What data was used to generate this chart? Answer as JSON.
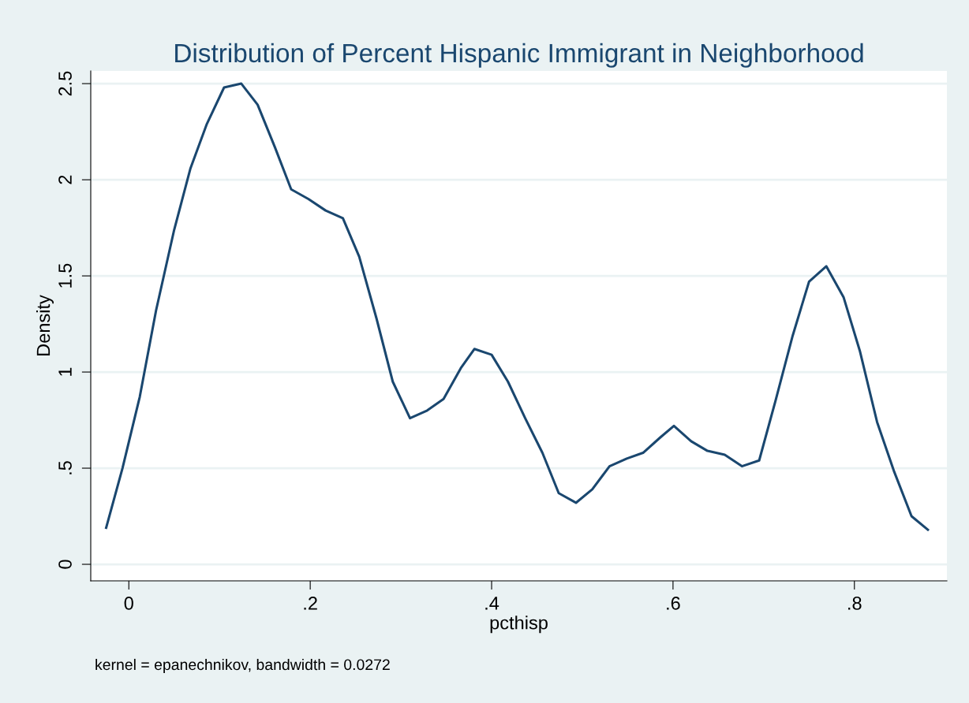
{
  "chart_data": {
    "type": "line",
    "title": "Distribution of Percent Hispanic Immigrant in Neighborhood",
    "xlabel": "pcthisp",
    "ylabel": "Density",
    "annotations": [
      "kernel = epanechnikov, bandwidth = 0.0272"
    ],
    "series": [
      {
        "color": "#1a476f",
        "x": [
          -0.025,
          -0.007,
          0.012,
          0.03,
          0.05,
          0.068,
          0.086,
          0.105,
          0.124,
          0.142,
          0.161,
          0.179,
          0.198,
          0.217,
          0.236,
          0.254,
          0.273,
          0.291,
          0.31,
          0.329,
          0.347,
          0.366,
          0.381,
          0.4,
          0.418,
          0.437,
          0.456,
          0.474,
          0.493,
          0.511,
          0.53,
          0.549,
          0.567,
          0.586,
          0.601,
          0.62,
          0.638,
          0.657,
          0.676,
          0.695,
          0.713,
          0.732,
          0.75,
          0.769,
          0.788,
          0.806,
          0.825,
          0.844,
          0.863,
          0.881
        ],
        "values": [
          0.19,
          0.5,
          0.87,
          1.32,
          1.74,
          2.06,
          2.29,
          2.48,
          2.5,
          2.39,
          2.17,
          1.95,
          1.9,
          1.84,
          1.8,
          1.6,
          1.28,
          0.95,
          0.76,
          0.8,
          0.86,
          1.02,
          1.12,
          1.09,
          0.95,
          0.76,
          0.58,
          0.37,
          0.32,
          0.39,
          0.51,
          0.55,
          0.58,
          0.66,
          0.72,
          0.64,
          0.59,
          0.57,
          0.51,
          0.54,
          0.85,
          1.19,
          1.47,
          1.55,
          1.39,
          1.11,
          0.74,
          0.48,
          0.25,
          0.18
        ]
      }
    ],
    "xlim": [
      -0.042,
      0.902
    ],
    "ylim": [
      -0.086,
      2.566
    ],
    "xticks": [
      {
        "value": 0,
        "label": "0"
      },
      {
        "value": 0.2,
        "label": ".2"
      },
      {
        "value": 0.4,
        "label": ".4"
      },
      {
        "value": 0.6,
        "label": ".6"
      },
      {
        "value": 0.8,
        "label": ".8"
      }
    ],
    "yticks": [
      {
        "value": 0,
        "label": "0"
      },
      {
        "value": 0.5,
        "label": ".5"
      },
      {
        "value": 1,
        "label": "1"
      },
      {
        "value": 1.5,
        "label": "1.5"
      },
      {
        "value": 2,
        "label": "2"
      },
      {
        "value": 2.5,
        "label": "2.5"
      }
    ],
    "grid": "y",
    "marker": "none",
    "line_style": "solid"
  }
}
